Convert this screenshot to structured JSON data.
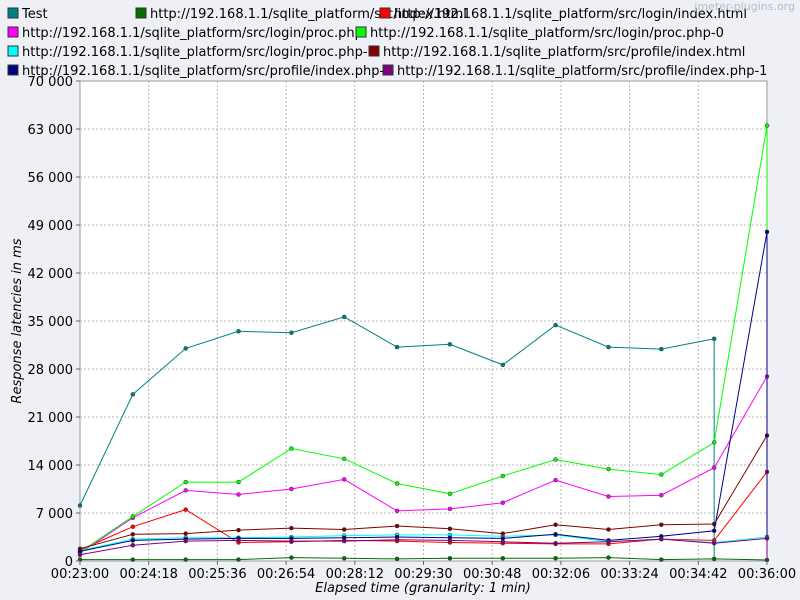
{
  "watermark": "jmeter-plugins.org",
  "chart_data": {
    "type": "line",
    "title": "",
    "xlabel": "Elapsed time (granularity: 1 min)",
    "ylabel": "Response latencies in ms",
    "ylim": [
      0,
      70000
    ],
    "grid": true,
    "legend_position": "top",
    "x_ticks": [
      "00:23:00",
      "00:24:18",
      "00:25:36",
      "00:26:54",
      "00:28:12",
      "00:29:30",
      "00:30:48",
      "00:32:06",
      "00:33:24",
      "00:34:42",
      "00:36:00"
    ],
    "y_ticks": [
      "0",
      "7 000",
      "14 000",
      "21 000",
      "28 000",
      "35 000",
      "42 000",
      "49 000",
      "56 000",
      "63 000",
      "70 000"
    ],
    "x": [
      "00:23:00",
      "00:24:00",
      "00:25:00",
      "00:26:00",
      "00:27:00",
      "00:28:00",
      "00:29:00",
      "00:30:00",
      "00:31:00",
      "00:32:00",
      "00:33:00",
      "00:34:00",
      "00:35:00",
      "00:36:00"
    ],
    "series": [
      {
        "name": "Test",
        "color": "#008080",
        "values": [
          8100,
          24300,
          31000,
          33500,
          33300,
          35600,
          31200,
          31600,
          28600,
          34400,
          31200,
          30900,
          32400,
          null
        ]
      },
      {
        "name": "http://192.168.1.1/sqlite_platform/src/index.html",
        "color": "#007000",
        "values": [
          200,
          200,
          200,
          200,
          500,
          400,
          300,
          400,
          400,
          400,
          500,
          200,
          300,
          150
        ]
      },
      {
        "name": "http://192.168.1.1/sqlite_platform/src/login/index.html",
        "color": "#ff0000",
        "values": [
          1600,
          5000,
          7500,
          2700,
          2800,
          3000,
          2900,
          2700,
          2600,
          2500,
          2500,
          3200,
          3000,
          13000
        ]
      },
      {
        "name": "http://192.168.1.1/sqlite_platform/src/login/proc.php",
        "color": "#ff00ff",
        "values": [
          1200,
          6300,
          10300,
          9700,
          10500,
          11900,
          7300,
          7600,
          8500,
          11800,
          9400,
          9600,
          13600,
          26900
        ]
      },
      {
        "name": "http://192.168.1.1/sqlite_platform/src/login/proc.php-0",
        "color": "#00ff00",
        "values": [
          1300,
          6500,
          11500,
          11500,
          16400,
          14900,
          11300,
          9800,
          12400,
          14800,
          13400,
          12600,
          17300,
          63500
        ]
      },
      {
        "name": "http://192.168.1.1/sqlite_platform/src/login/proc.php-1",
        "color": "#00ffff",
        "values": [
          1500,
          3200,
          3400,
          3400,
          3500,
          3700,
          3800,
          3800,
          3600,
          3800,
          2800,
          3200,
          2700,
          3500
        ]
      },
      {
        "name": "http://192.168.1.1/sqlite_platform/src/profile/index.html",
        "color": "#800000",
        "values": [
          1800,
          3900,
          4000,
          4500,
          4800,
          4600,
          5100,
          4700,
          4000,
          5300,
          4600,
          5300,
          5400,
          18300
        ]
      },
      {
        "name": "http://192.168.1.1/sqlite_platform/src/profile/index.php-0",
        "color": "#000080",
        "values": [
          1400,
          3000,
          3200,
          3300,
          3300,
          3400,
          3500,
          3400,
          3300,
          3900,
          3000,
          3600,
          4400,
          48000
        ]
      },
      {
        "name": "http://192.168.1.1/sqlite_platform/src/profile/index.php-1",
        "color": "#800080",
        "values": [
          900,
          2300,
          2900,
          3000,
          2900,
          2900,
          3100,
          3000,
          2800,
          2600,
          2800,
          3200,
          2600,
          3300
        ]
      }
    ]
  }
}
